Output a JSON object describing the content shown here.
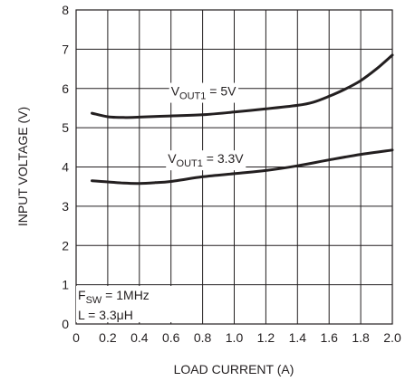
{
  "chart_data": {
    "type": "line",
    "xlabel": "LOAD CURRENT (A)",
    "ylabel": "INPUT VOLTAGE (V)",
    "xlim": [
      0,
      2.0
    ],
    "ylim": [
      0,
      8
    ],
    "grid": true,
    "x_ticks": [
      "0",
      "0.2",
      "0.4",
      "0.6",
      "0.8",
      "1.0",
      "1.2",
      "1.4",
      "1.6",
      "1.8",
      "2.0"
    ],
    "y_ticks": [
      "0",
      "1",
      "2",
      "3",
      "4",
      "5",
      "6",
      "7",
      "8"
    ],
    "series": [
      {
        "name": "VOUT1 = 5V",
        "label": {
          "prefix": "V",
          "sub": "OUT1",
          "suffix": " = 5V"
        },
        "x": [
          0.1,
          0.2,
          0.3,
          0.4,
          0.6,
          0.8,
          1.0,
          1.2,
          1.4,
          1.5,
          1.6,
          1.7,
          1.8,
          1.9,
          2.0
        ],
        "y": [
          5.37,
          5.28,
          5.26,
          5.27,
          5.3,
          5.33,
          5.4,
          5.48,
          5.57,
          5.65,
          5.8,
          5.98,
          6.2,
          6.5,
          6.85
        ]
      },
      {
        "name": "VOUT1 = 3.3V",
        "label": {
          "prefix": "V",
          "sub": "OUT1",
          "suffix": " = 3.3V"
        },
        "x": [
          0.1,
          0.2,
          0.3,
          0.4,
          0.5,
          0.6,
          0.8,
          1.0,
          1.2,
          1.4,
          1.6,
          1.8,
          2.0
        ],
        "y": [
          3.65,
          3.62,
          3.59,
          3.58,
          3.6,
          3.63,
          3.75,
          3.83,
          3.91,
          4.03,
          4.18,
          4.32,
          4.43
        ]
      }
    ],
    "annotations": {
      "fsw": {
        "prefix": "F",
        "sub": "SW",
        "suffix": " = 1MHz"
      },
      "inductance": "L = 3.3μH"
    }
  }
}
